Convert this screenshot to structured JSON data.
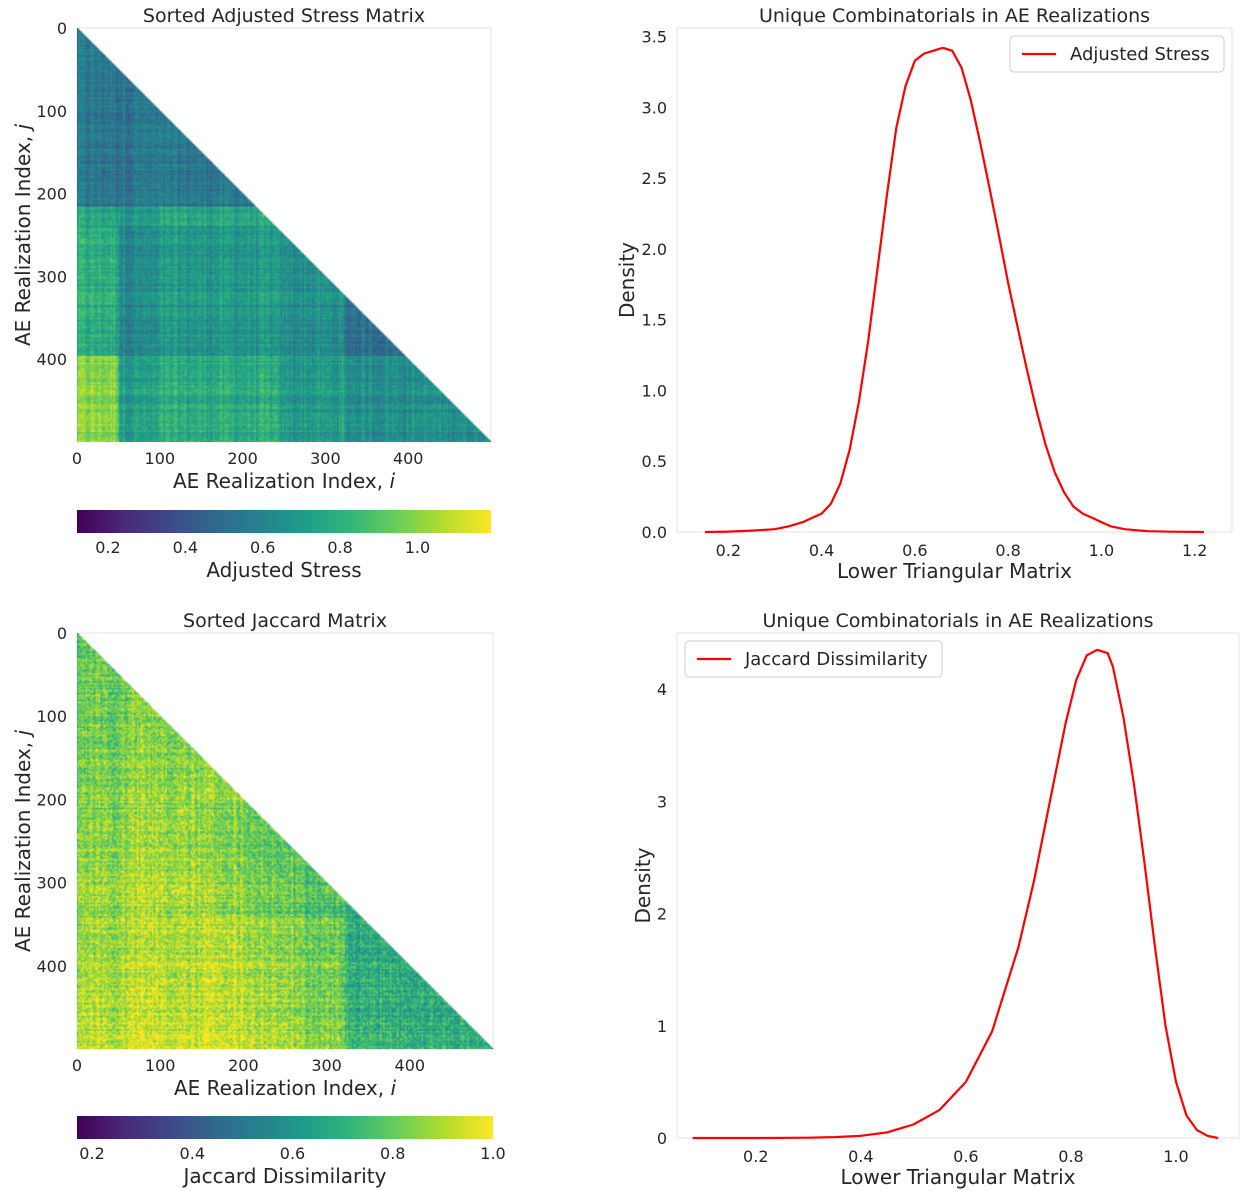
{
  "chart_data": [
    {
      "type": "heatmap",
      "title": "Sorted Adjusted Stress Matrix",
      "xlabel_text": "AE Realization Index, ",
      "xlabel_var": "i",
      "ylabel_text": "AE Realization Index, ",
      "ylabel_var": "j",
      "n": 500,
      "xticks": [
        0,
        100,
        200,
        300,
        400
      ],
      "yticks": [
        0,
        100,
        200,
        300,
        400
      ],
      "lower_triangular": true,
      "colormap": "viridis",
      "colorbar": {
        "label": "Adjusted Stress",
        "vmin": 0.12,
        "vmax": 1.19,
        "ticks": [
          0.2,
          0.4,
          0.6,
          0.8,
          1.0
        ],
        "tick_labels": [
          "0.2",
          "0.4",
          "0.6",
          "0.8",
          "1.0"
        ]
      },
      "block_boundaries": [
        50,
        215,
        240,
        320,
        395
      ],
      "value_mean": 0.68
    },
    {
      "type": "line",
      "title": "Unique Combinatorials in AE Realizations",
      "xlabel": "Lower Triangular Matrix",
      "ylabel": "Density",
      "xlim": [
        0.09,
        1.28
      ],
      "ylim": [
        0,
        3.56
      ],
      "xticks": [
        0.2,
        0.4,
        0.6,
        0.8,
        1.0,
        1.2
      ],
      "xtick_labels": [
        "0.2",
        "0.4",
        "0.6",
        "0.8",
        "1.0",
        "1.2"
      ],
      "yticks": [
        0,
        0.5,
        1.0,
        1.5,
        2.0,
        2.5,
        3.0,
        3.5
      ],
      "ytick_labels": [
        "0.0",
        "0.5",
        "1.0",
        "1.5",
        "2.0",
        "2.5",
        "3.0",
        "3.5"
      ],
      "legend": "top-right",
      "series": [
        {
          "name": "Adjusted Stress",
          "color": "#ff0000",
          "x": [
            0.15,
            0.2,
            0.25,
            0.3,
            0.33,
            0.36,
            0.38,
            0.4,
            0.42,
            0.44,
            0.46,
            0.48,
            0.5,
            0.52,
            0.54,
            0.56,
            0.58,
            0.6,
            0.62,
            0.64,
            0.66,
            0.68,
            0.7,
            0.72,
            0.74,
            0.76,
            0.78,
            0.8,
            0.82,
            0.84,
            0.86,
            0.88,
            0.9,
            0.92,
            0.94,
            0.96,
            0.98,
            1.0,
            1.02,
            1.05,
            1.1,
            1.15,
            1.22
          ],
          "y": [
            0.0,
            0.003,
            0.01,
            0.02,
            0.04,
            0.07,
            0.1,
            0.13,
            0.2,
            0.34,
            0.58,
            0.92,
            1.35,
            1.86,
            2.38,
            2.85,
            3.15,
            3.33,
            3.38,
            3.4,
            3.42,
            3.4,
            3.28,
            3.05,
            2.75,
            2.43,
            2.1,
            1.76,
            1.45,
            1.15,
            0.87,
            0.62,
            0.42,
            0.28,
            0.18,
            0.13,
            0.1,
            0.07,
            0.04,
            0.02,
            0.006,
            0.002,
            0.0
          ]
        }
      ]
    },
    {
      "type": "heatmap",
      "title": "Sorted Jaccard Matrix",
      "xlabel_text": "AE Realization Index, ",
      "xlabel_var": "i",
      "ylabel_text": "AE Realization Index, ",
      "ylabel_var": "j",
      "n": 500,
      "xticks": [
        0,
        100,
        200,
        300,
        400
      ],
      "yticks": [
        0,
        100,
        200,
        300,
        400
      ],
      "lower_triangular": true,
      "colormap": "viridis",
      "colorbar": {
        "label": "Jaccard Dissimilarity",
        "vmin": 0.17,
        "vmax": 1.0,
        "ticks": [
          0.2,
          0.4,
          0.6,
          0.8,
          1.0
        ],
        "tick_labels": [
          "0.2",
          "0.4",
          "0.6",
          "0.8",
          "1.0"
        ]
      },
      "value_mean": 0.85
    },
    {
      "type": "line",
      "title": "Unique Combinatorials in AE Realizations",
      "xlabel": "Lower Triangular Matrix",
      "ylabel": "Density",
      "xlim": [
        0.05,
        1.12
      ],
      "ylim": [
        0,
        4.5
      ],
      "xticks": [
        0.2,
        0.4,
        0.6,
        0.8,
        1.0
      ],
      "xtick_labels": [
        "0.2",
        "0.4",
        "0.6",
        "0.8",
        "1.0"
      ],
      "yticks": [
        0,
        1,
        2,
        3,
        4
      ],
      "ytick_labels": [
        "0",
        "1",
        "2",
        "3",
        "4"
      ],
      "legend": "top-left",
      "series": [
        {
          "name": "Jaccard Dissimilarity",
          "color": "#ff0000",
          "x": [
            0.08,
            0.2,
            0.3,
            0.35,
            0.4,
            0.45,
            0.5,
            0.55,
            0.6,
            0.65,
            0.7,
            0.73,
            0.76,
            0.79,
            0.81,
            0.83,
            0.85,
            0.87,
            0.88,
            0.9,
            0.92,
            0.94,
            0.96,
            0.98,
            1.0,
            1.02,
            1.04,
            1.06,
            1.08
          ],
          "y": [
            0.0,
            0.0,
            0.003,
            0.008,
            0.02,
            0.05,
            0.12,
            0.25,
            0.5,
            0.95,
            1.7,
            2.3,
            3.0,
            3.7,
            4.08,
            4.3,
            4.35,
            4.32,
            4.2,
            3.75,
            3.15,
            2.45,
            1.7,
            1.0,
            0.5,
            0.2,
            0.07,
            0.02,
            0.0
          ]
        }
      ]
    }
  ]
}
